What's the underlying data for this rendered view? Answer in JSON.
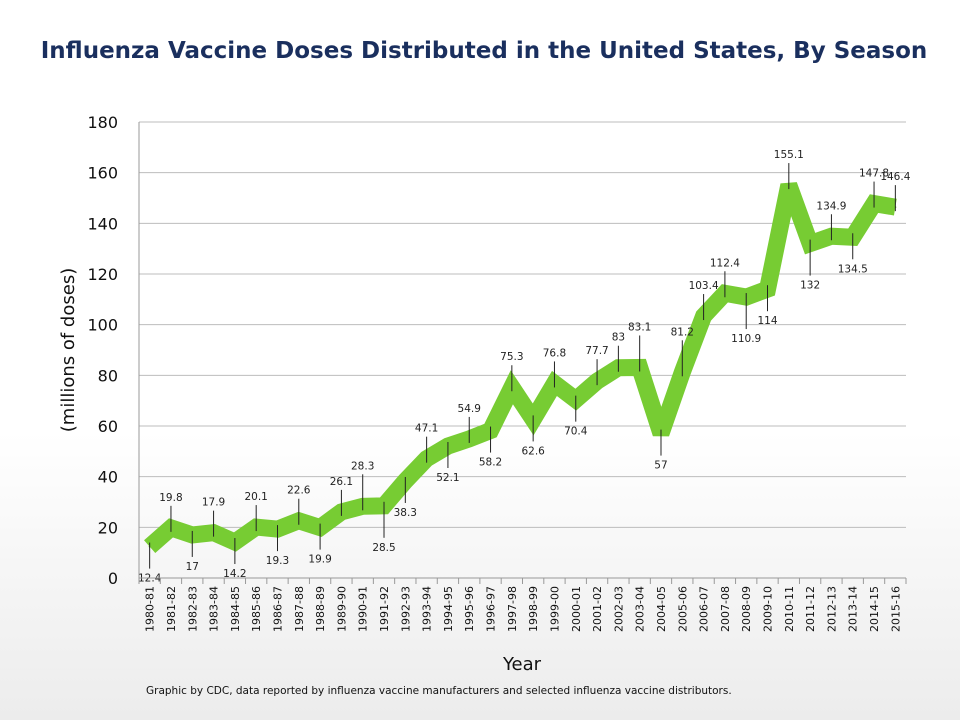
{
  "chart_data": {
    "type": "line",
    "title": "Influenza Vaccine Doses Distributed in the United States, By Season",
    "xlabel": "Year",
    "ylabel": "(millions of doses)",
    "ylim": [
      0,
      180
    ],
    "yticks": [
      0,
      20,
      40,
      60,
      80,
      100,
      120,
      140,
      160,
      180
    ],
    "grid": true,
    "categories": [
      "1980-81",
      "1981-82",
      "1982-83",
      "1983-84",
      "1984-85",
      "1985-86",
      "1986-87",
      "1987-88",
      "1988-89",
      "1989-90",
      "1990-91",
      "1991-92",
      "1992-93",
      "1993-94",
      "1994-95",
      "1995-96",
      "1996-97",
      "1997-98",
      "1998-99",
      "1999-00",
      "2000-01",
      "2001-02",
      "2002-03",
      "2003-04",
      "2004-05",
      "2005-06",
      "2006-07",
      "2007-08",
      "2008-09",
      "2009-10",
      "2010-11",
      "2011-12",
      "2012-13",
      "2013-14",
      "2014-15",
      "2015-16"
    ],
    "values": [
      12.4,
      19.8,
      17,
      17.9,
      14.2,
      20.1,
      19.3,
      22.6,
      19.9,
      26.1,
      28.3,
      28.5,
      38.3,
      47.1,
      52.1,
      54.9,
      58.2,
      75.3,
      62.6,
      76.8,
      70.4,
      77.7,
      83,
      83.1,
      57,
      81.2,
      103.4,
      112.4,
      110.9,
      114,
      155.1,
      132,
      134.9,
      134.5,
      147.8,
      146.4
    ],
    "labels": [
      "12.4",
      "19.8",
      "17",
      "17.9",
      "14.2",
      "20.1",
      "19.3",
      "22.6",
      "19.9",
      "26.1",
      "28.3",
      "28.5",
      "38.3",
      "47.1",
      "52.1",
      "54.9",
      "58.2",
      "75.3",
      "62.6",
      "76.8",
      "70.4",
      "77.7",
      "83",
      "83.1",
      "57",
      "81.2",
      "103.4",
      "112.4",
      "110.9",
      "114",
      "155.1",
      "132",
      "134.9",
      "134.5",
      "147.8",
      "146.4"
    ],
    "series_color": "#77cc33"
  },
  "footer": {
    "credit": "Graphic by CDC, data reported by influenza vaccine manufacturers and selected influenza vaccine distributors."
  }
}
